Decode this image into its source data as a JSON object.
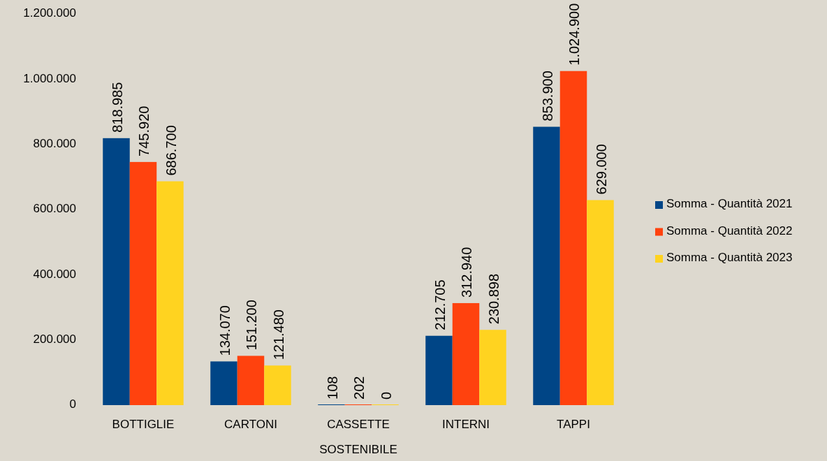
{
  "chart_data": {
    "type": "bar",
    "categories": [
      "BOTTIGLIE",
      "CARTONI",
      "CASSETTE SOSTENIBILE",
      "INTERNI",
      "TAPPI"
    ],
    "series": [
      {
        "name": "Somma - Quantità 2021",
        "color": "#004586",
        "values": [
          818985,
          134070,
          108,
          212705,
          853900
        ],
        "value_labels": [
          "818.985",
          "134.070",
          "108",
          "212.705",
          "853.900"
        ]
      },
      {
        "name": "Somma - Quantità 2022",
        "color": "#ff420e",
        "values": [
          745920,
          151200,
          202,
          312940,
          1024900
        ],
        "value_labels": [
          "745.920",
          "151.200",
          "202",
          "312.940",
          "1.024.900"
        ]
      },
      {
        "name": "Somma - Quantità 2023",
        "color": "#ffd320",
        "values": [
          686700,
          121480,
          0,
          230898,
          629000
        ],
        "value_labels": [
          "686.700",
          "121.480",
          "0",
          "230.898",
          "629.000"
        ]
      }
    ],
    "ylim": [
      0,
      1200000
    ],
    "yticks": [
      {
        "value": 0,
        "label": "0"
      },
      {
        "value": 200000,
        "label": "200.000"
      },
      {
        "value": 400000,
        "label": "400.000"
      },
      {
        "value": 600000,
        "label": "600.000"
      },
      {
        "value": 800000,
        "label": "800.000"
      },
      {
        "value": 1000000,
        "label": "1.000.000"
      },
      {
        "value": 1200000,
        "label": "1.200.000"
      }
    ],
    "legend": "right",
    "grid": false
  }
}
